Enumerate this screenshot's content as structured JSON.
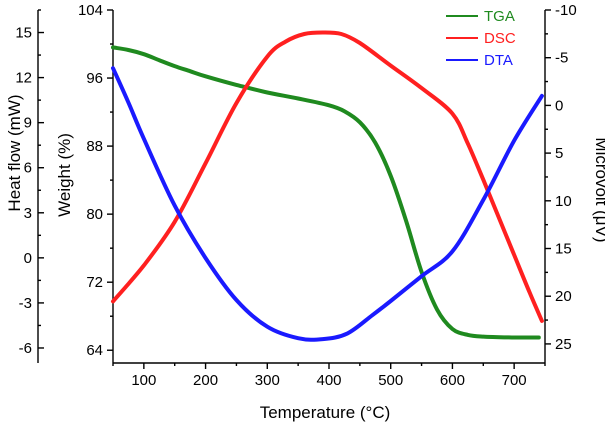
{
  "chart_data": {
    "type": "line",
    "xlabel": "Temperature (°C)",
    "ylabel_heat": "Heat flow (mW)",
    "ylabel_weight": "Weight (%)",
    "ylabel_microvolt": "Microvolt (μV)",
    "xlim": [
      50,
      750
    ],
    "x_ticks": [
      100,
      200,
      300,
      400,
      500,
      600,
      700
    ],
    "heat_flow_axis": {
      "range": [
        -7,
        16.5
      ],
      "ticks": [
        -6,
        -3,
        0,
        3,
        6,
        9,
        12,
        15
      ]
    },
    "weight_axis": {
      "range": [
        62.5,
        104
      ],
      "ticks": [
        64,
        72,
        80,
        88,
        96,
        104
      ]
    },
    "microvolt_axis": {
      "range": [
        27,
        -10
      ],
      "reversed": true,
      "ticks": [
        25,
        20,
        15,
        10,
        5,
        0,
        -5,
        -10
      ]
    },
    "grid": false,
    "legend": {
      "position": "top-right"
    },
    "series": [
      {
        "name": "TGA",
        "axis": "weight",
        "color": "#1f8a1f",
        "x": [
          50,
          75,
          100,
          125,
          150,
          175,
          200,
          250,
          300,
          350,
          400,
          425,
          450,
          475,
          500,
          525,
          550,
          575,
          600,
          625,
          650,
          700,
          740
        ],
        "y": [
          99.6,
          99.3,
          98.8,
          98.1,
          97.4,
          96.8,
          96.2,
          95.2,
          94.3,
          93.6,
          92.8,
          92.1,
          90.8,
          88.4,
          84.5,
          79.2,
          73.2,
          68.8,
          66.5,
          65.8,
          65.6,
          65.5,
          65.5
        ]
      },
      {
        "name": "DSC",
        "axis": "heat_flow",
        "color": "#ff2020",
        "x": [
          50,
          100,
          150,
          200,
          250,
          300,
          330,
          360,
          390,
          420,
          450,
          500,
          550,
          600,
          625,
          650,
          675,
          700,
          725,
          745
        ],
        "y": [
          -2.9,
          -0.5,
          2.4,
          6.3,
          10.3,
          13.4,
          14.4,
          14.9,
          15.0,
          14.9,
          14.3,
          12.8,
          11.3,
          9.6,
          7.6,
          5.2,
          2.7,
          0.2,
          -2.3,
          -4.2
        ]
      },
      {
        "name": "DTA",
        "axis": "microvolt",
        "color": "#1a1aff",
        "x": [
          50,
          75,
          100,
          150,
          200,
          250,
          300,
          350,
          390,
          430,
          470,
          500,
          550,
          600,
          650,
          700,
          745
        ],
        "y": [
          -3.9,
          -0.3,
          3.5,
          10.5,
          16.0,
          20.4,
          23.2,
          24.4,
          24.5,
          23.9,
          22.0,
          20.5,
          17.9,
          15.3,
          9.9,
          3.7,
          -1.0
        ]
      }
    ]
  }
}
